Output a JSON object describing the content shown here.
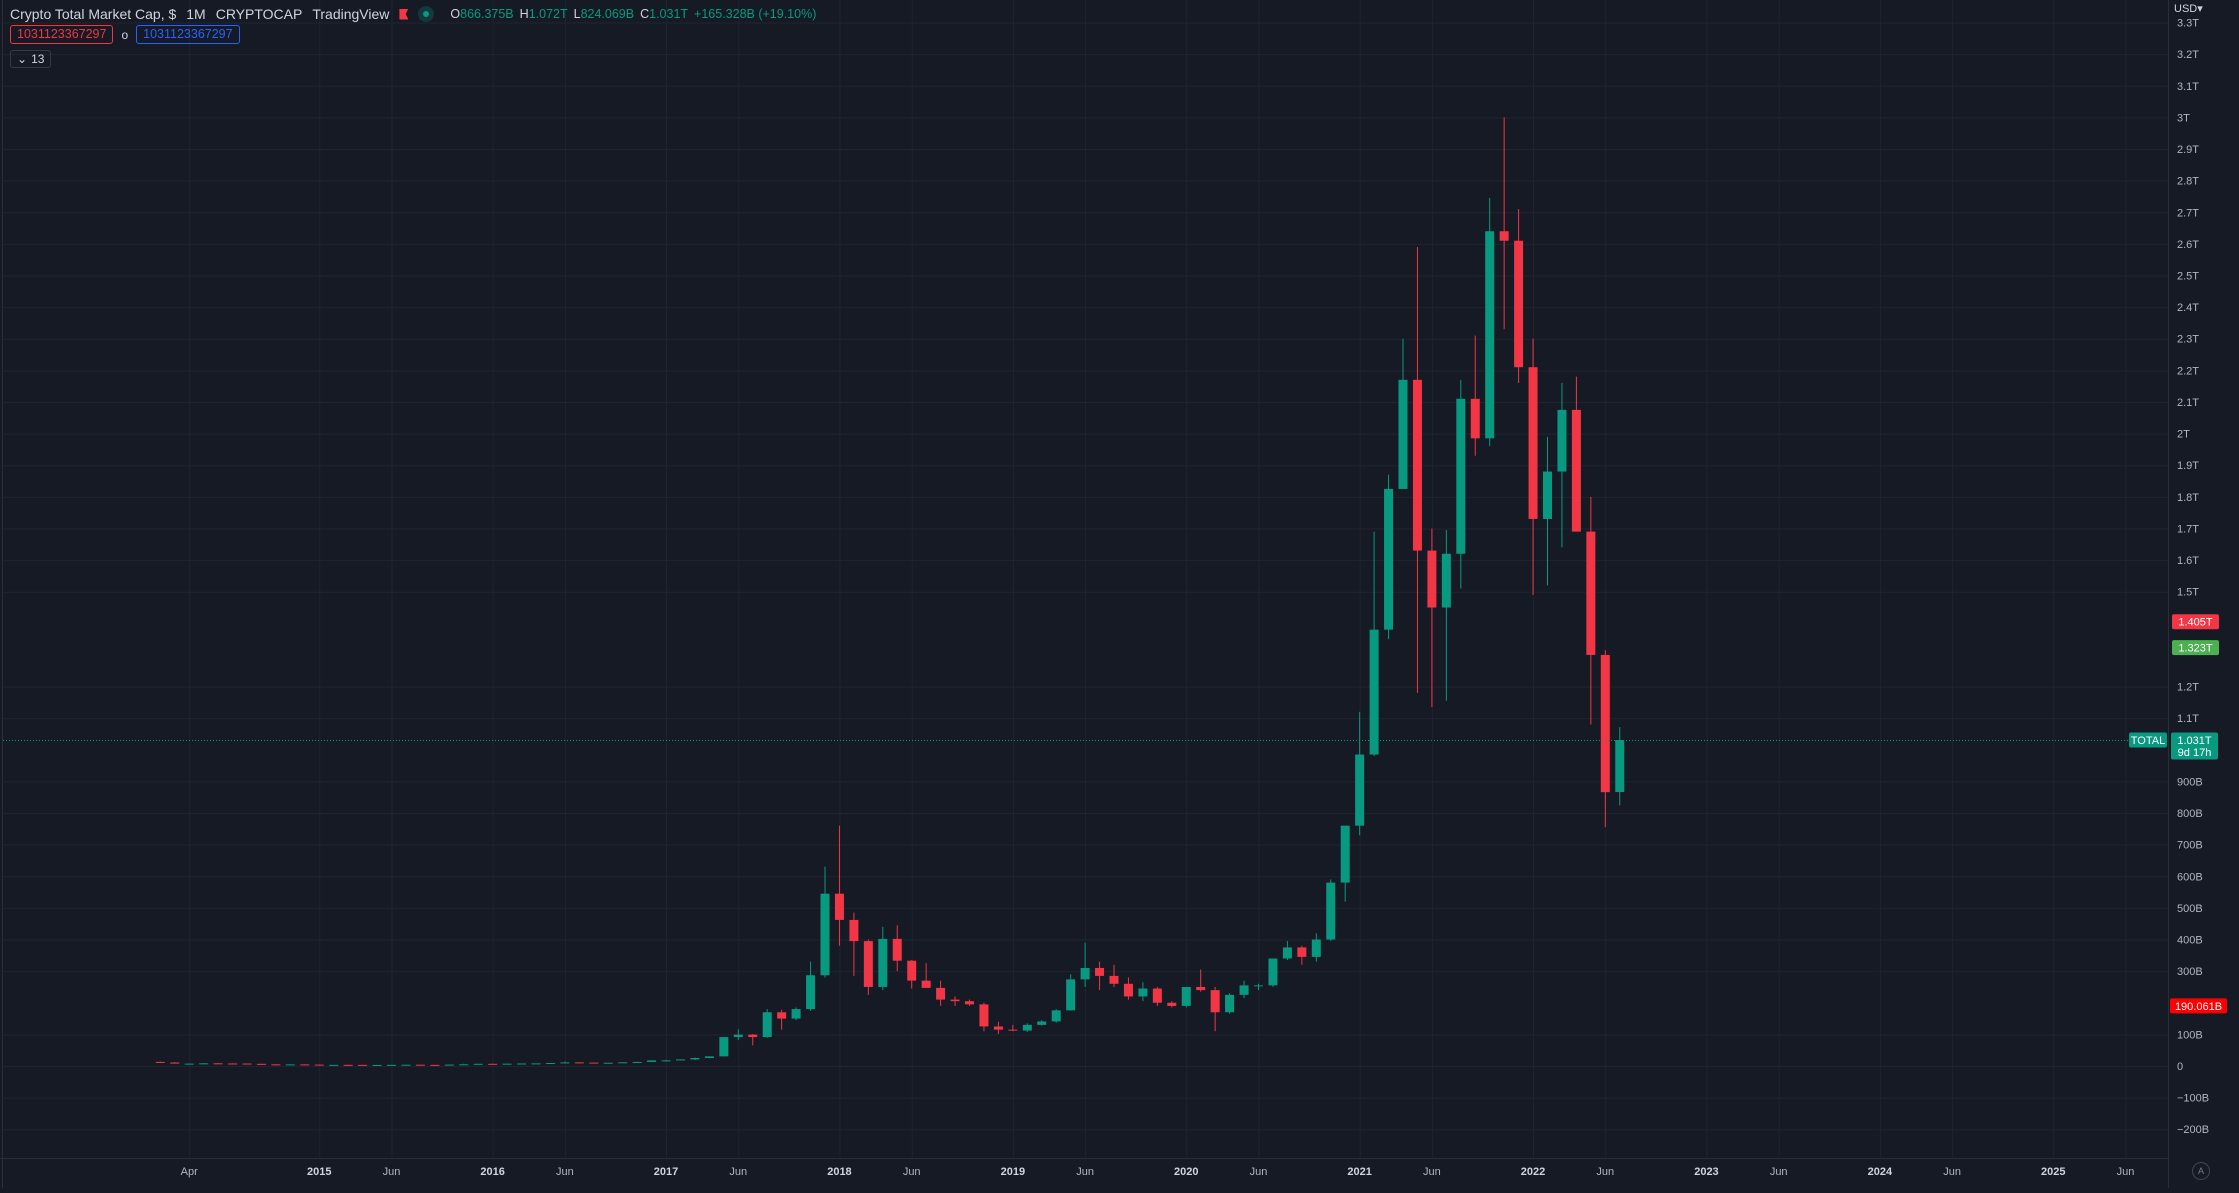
{
  "header": {
    "title": "Crypto Total Market Cap, $",
    "interval": "1M",
    "exchange": "CRYPTOCAP",
    "source": "TradingView",
    "ohlc": {
      "o_label": "O",
      "o_value": "866.375B",
      "h_label": "H",
      "h_value": "1.072T",
      "l_label": "L",
      "l_value": "824.069B",
      "c_label": "C",
      "c_value": "1.031T",
      "change": "+165.328B (+19.10%)"
    },
    "tag_red": "1031123367297",
    "tag_o": "o",
    "tag_blue": "1031123367297",
    "indicator_count": "13",
    "currency": "USD",
    "auto_label": "A"
  },
  "colors": {
    "background": "#161a25",
    "up": "#089981",
    "down": "#f23645",
    "grid": "#1f2430",
    "text": "#b2b5be",
    "label_red": "#f23645",
    "label_green": "#4caf50"
  },
  "price_labels": {
    "high_level": "1.405T",
    "mid_level": "1.323T",
    "symbol": "TOTAL",
    "last": "1.031T",
    "countdown": "9d 17h",
    "low_marker": "190.061B"
  },
  "chart_data": {
    "type": "candlestick",
    "title": "Crypto Total Market Cap, $",
    "interval": "1M",
    "y_unit": "USD",
    "ylim": [
      -250000000000,
      3350000000000
    ],
    "grid": true,
    "y_ticks": [
      {
        "v": 3300000000000,
        "label": "3.3T"
      },
      {
        "v": 3200000000000,
        "label": "3.2T"
      },
      {
        "v": 3100000000000,
        "label": "3.1T"
      },
      {
        "v": 3000000000000,
        "label": "3T"
      },
      {
        "v": 2900000000000,
        "label": "2.9T"
      },
      {
        "v": 2800000000000,
        "label": "2.8T"
      },
      {
        "v": 2700000000000,
        "label": "2.7T"
      },
      {
        "v": 2600000000000,
        "label": "2.6T"
      },
      {
        "v": 2500000000000,
        "label": "2.5T"
      },
      {
        "v": 2400000000000,
        "label": "2.4T"
      },
      {
        "v": 2300000000000,
        "label": "2.3T"
      },
      {
        "v": 2200000000000,
        "label": "2.2T"
      },
      {
        "v": 2100000000000,
        "label": "2.1T"
      },
      {
        "v": 2000000000000,
        "label": "2T"
      },
      {
        "v": 1900000000000,
        "label": "1.9T"
      },
      {
        "v": 1800000000000,
        "label": "1.8T"
      },
      {
        "v": 1700000000000,
        "label": "1.7T"
      },
      {
        "v": 1600000000000,
        "label": "1.6T"
      },
      {
        "v": 1500000000000,
        "label": "1.5T"
      },
      {
        "v": 1200000000000,
        "label": "1.2T"
      },
      {
        "v": 1100000000000,
        "label": "1.1T"
      },
      {
        "v": 900000000000,
        "label": "900B"
      },
      {
        "v": 800000000000,
        "label": "800B"
      },
      {
        "v": 700000000000,
        "label": "700B"
      },
      {
        "v": 600000000000,
        "label": "600B"
      },
      {
        "v": 500000000000,
        "label": "500B"
      },
      {
        "v": 400000000000,
        "label": "400B"
      },
      {
        "v": 300000000000,
        "label": "300B"
      },
      {
        "v": 100000000000,
        "label": "100B"
      },
      {
        "v": 0,
        "label": "0"
      },
      {
        "v": -100000000000,
        "label": "−100B"
      },
      {
        "v": -200000000000,
        "label": "−200B"
      }
    ],
    "x_ticks": [
      {
        "date": "2014-04",
        "label": "Apr",
        "bold": false
      },
      {
        "date": "2015-01",
        "label": "2015",
        "bold": true
      },
      {
        "date": "2015-06",
        "label": "Jun",
        "bold": false
      },
      {
        "date": "2016-01",
        "label": "2016",
        "bold": true
      },
      {
        "date": "2016-06",
        "label": "Jun",
        "bold": false
      },
      {
        "date": "2017-01",
        "label": "2017",
        "bold": true
      },
      {
        "date": "2017-06",
        "label": "Jun",
        "bold": false
      },
      {
        "date": "2018-01",
        "label": "2018",
        "bold": true
      },
      {
        "date": "2018-06",
        "label": "Jun",
        "bold": false
      },
      {
        "date": "2019-01",
        "label": "2019",
        "bold": true
      },
      {
        "date": "2019-06",
        "label": "Jun",
        "bold": false
      },
      {
        "date": "2020-01",
        "label": "2020",
        "bold": true
      },
      {
        "date": "2020-06",
        "label": "Jun",
        "bold": false
      },
      {
        "date": "2021-01",
        "label": "2021",
        "bold": true
      },
      {
        "date": "2021-06",
        "label": "Jun",
        "bold": false
      },
      {
        "date": "2022-01",
        "label": "2022",
        "bold": true
      },
      {
        "date": "2022-06",
        "label": "Jun",
        "bold": false
      },
      {
        "date": "2023-01",
        "label": "2023",
        "bold": true
      },
      {
        "date": "2023-06",
        "label": "Jun",
        "bold": false
      },
      {
        "date": "2024-01",
        "label": "2024",
        "bold": true
      },
      {
        "date": "2024-06",
        "label": "Jun",
        "bold": false
      },
      {
        "date": "2025-01",
        "label": "2025",
        "bold": true
      },
      {
        "date": "2025-06",
        "label": "Jun",
        "bold": false
      }
    ],
    "candles": [
      {
        "date": "2014-02",
        "o": 13,
        "h": 14,
        "l": 10,
        "c": 11
      },
      {
        "date": "2014-03",
        "o": 11,
        "h": 12,
        "l": 8,
        "c": 7.5
      },
      {
        "date": "2014-04",
        "o": 7.5,
        "h": 8,
        "l": 6.5,
        "c": 7.5
      },
      {
        "date": "2014-05",
        "o": 7.5,
        "h": 9,
        "l": 7,
        "c": 8.5
      },
      {
        "date": "2014-06",
        "o": 8.5,
        "h": 9,
        "l": 7.5,
        "c": 8
      },
      {
        "date": "2014-07",
        "o": 8,
        "h": 8.5,
        "l": 7.5,
        "c": 7.8
      },
      {
        "date": "2014-08",
        "o": 7.8,
        "h": 8,
        "l": 6.5,
        "c": 6.8
      },
      {
        "date": "2014-09",
        "o": 6.8,
        "h": 7,
        "l": 5,
        "c": 5.2
      },
      {
        "date": "2014-10",
        "o": 5.2,
        "h": 5.5,
        "l": 4.5,
        "c": 4.7
      },
      {
        "date": "2014-11",
        "o": 4.7,
        "h": 5.5,
        "l": 4.6,
        "c": 5.1
      },
      {
        "date": "2014-12",
        "o": 5.1,
        "h": 5.3,
        "l": 4.3,
        "c": 4.4
      },
      {
        "date": "2015-01",
        "o": 4.4,
        "h": 4.5,
        "l": 2.4,
        "c": 3.2
      },
      {
        "date": "2015-02",
        "o": 3.2,
        "h": 3.7,
        "l": 3.0,
        "c": 3.6
      },
      {
        "date": "2015-03",
        "o": 3.6,
        "h": 4.2,
        "l": 3.4,
        "c": 3.5
      },
      {
        "date": "2015-04",
        "o": 3.5,
        "h": 3.6,
        "l": 3.1,
        "c": 3.2
      },
      {
        "date": "2015-05",
        "o": 3.2,
        "h": 3.5,
        "l": 3.1,
        "c": 3.3
      },
      {
        "date": "2015-06",
        "o": 3.3,
        "h": 3.7,
        "l": 3.2,
        "c": 3.6
      },
      {
        "date": "2015-07",
        "o": 3.6,
        "h": 4.4,
        "l": 3.6,
        "c": 4.1
      },
      {
        "date": "2015-08",
        "o": 4.1,
        "h": 4.3,
        "l": 3.4,
        "c": 3.5
      },
      {
        "date": "2015-09",
        "o": 3.5,
        "h": 3.6,
        "l": 3.3,
        "c": 3.4
      },
      {
        "date": "2015-10",
        "o": 3.4,
        "h": 4.8,
        "l": 3.4,
        "c": 4.4
      },
      {
        "date": "2015-11",
        "o": 4.4,
        "h": 7.2,
        "l": 4.2,
        "c": 5.4
      },
      {
        "date": "2015-12",
        "o": 5.4,
        "h": 7.0,
        "l": 5.2,
        "c": 6.9
      },
      {
        "date": "2016-01",
        "o": 6.9,
        "h": 7.6,
        "l": 6.0,
        "c": 6.3
      },
      {
        "date": "2016-02",
        "o": 6.3,
        "h": 7.4,
        "l": 6.1,
        "c": 7.3
      },
      {
        "date": "2016-03",
        "o": 7.3,
        "h": 8.0,
        "l": 6.8,
        "c": 7.9
      },
      {
        "date": "2016-04",
        "o": 7.9,
        "h": 8.3,
        "l": 7.4,
        "c": 8.3
      },
      {
        "date": "2016-05",
        "o": 8.3,
        "h": 9.6,
        "l": 8.1,
        "c": 9.5
      },
      {
        "date": "2016-06",
        "o": 9.5,
        "h": 14.5,
        "l": 9.4,
        "c": 11.4
      },
      {
        "date": "2016-07",
        "o": 11.4,
        "h": 12.0,
        "l": 10.3,
        "c": 10.8
      },
      {
        "date": "2016-08",
        "o": 10.8,
        "h": 11.0,
        "l": 9.3,
        "c": 10.0
      },
      {
        "date": "2016-09",
        "o": 10.0,
        "h": 10.5,
        "l": 9.8,
        "c": 10.3
      },
      {
        "date": "2016-10",
        "o": 10.3,
        "h": 11.8,
        "l": 10.2,
        "c": 11.7
      },
      {
        "date": "2016-11",
        "o": 11.7,
        "h": 12.9,
        "l": 11.4,
        "c": 12.8
      },
      {
        "date": "2016-12",
        "o": 12.8,
        "h": 17.7,
        "l": 12.7,
        "c": 17.7
      },
      {
        "date": "2017-01",
        "o": 17.7,
        "h": 19.5,
        "l": 15.6,
        "c": 17.7
      },
      {
        "date": "2017-02",
        "o": 17.7,
        "h": 21.0,
        "l": 17.3,
        "c": 20.8
      },
      {
        "date": "2017-03",
        "o": 20.8,
        "h": 27.0,
        "l": 18.7,
        "c": 25.3
      },
      {
        "date": "2017-04",
        "o": 25.3,
        "h": 30.5,
        "l": 25.0,
        "c": 30.4
      },
      {
        "date": "2017-05",
        "o": 30.4,
        "h": 91.0,
        "l": 30.0,
        "c": 91.5
      },
      {
        "date": "2017-06",
        "o": 91.5,
        "h": 116,
        "l": 82,
        "c": 99.3
      },
      {
        "date": "2017-07",
        "o": 99.3,
        "h": 101,
        "l": 65,
        "c": 91.6
      },
      {
        "date": "2017-08",
        "o": 91.6,
        "h": 180,
        "l": 89,
        "c": 170
      },
      {
        "date": "2017-09",
        "o": 170,
        "h": 178,
        "l": 115,
        "c": 150
      },
      {
        "date": "2017-10",
        "o": 150,
        "h": 185,
        "l": 145,
        "c": 180
      },
      {
        "date": "2017-11",
        "o": 180,
        "h": 330,
        "l": 175,
        "c": 287
      },
      {
        "date": "2017-12",
        "o": 287,
        "h": 630,
        "l": 280,
        "c": 545
      },
      {
        "date": "2018-01",
        "o": 545,
        "h": 760,
        "l": 380,
        "c": 462
      },
      {
        "date": "2018-02",
        "o": 462,
        "h": 485,
        "l": 285,
        "c": 395
      },
      {
        "date": "2018-03",
        "o": 395,
        "h": 400,
        "l": 225,
        "c": 250
      },
      {
        "date": "2018-04",
        "o": 250,
        "h": 440,
        "l": 240,
        "c": 402
      },
      {
        "date": "2018-05",
        "o": 402,
        "h": 445,
        "l": 300,
        "c": 333
      },
      {
        "date": "2018-06",
        "o": 333,
        "h": 335,
        "l": 245,
        "c": 270
      },
      {
        "date": "2018-07",
        "o": 270,
        "h": 325,
        "l": 255,
        "c": 247
      },
      {
        "date": "2018-08",
        "o": 247,
        "h": 270,
        "l": 190,
        "c": 210
      },
      {
        "date": "2018-09",
        "o": 210,
        "h": 220,
        "l": 190,
        "c": 205
      },
      {
        "date": "2018-10",
        "o": 205,
        "h": 210,
        "l": 190,
        "c": 195
      },
      {
        "date": "2018-11",
        "o": 195,
        "h": 200,
        "l": 110,
        "c": 125
      },
      {
        "date": "2018-12",
        "o": 125,
        "h": 140,
        "l": 101,
        "c": 115
      },
      {
        "date": "2019-01",
        "o": 115,
        "h": 130,
        "l": 110,
        "c": 112
      },
      {
        "date": "2019-02",
        "o": 112,
        "h": 135,
        "l": 108,
        "c": 130
      },
      {
        "date": "2019-03",
        "o": 130,
        "h": 145,
        "l": 128,
        "c": 141
      },
      {
        "date": "2019-04",
        "o": 141,
        "h": 180,
        "l": 137,
        "c": 176
      },
      {
        "date": "2019-05",
        "o": 176,
        "h": 290,
        "l": 175,
        "c": 274
      },
      {
        "date": "2019-06",
        "o": 274,
        "h": 390,
        "l": 250,
        "c": 310
      },
      {
        "date": "2019-07",
        "o": 310,
        "h": 330,
        "l": 240,
        "c": 285
      },
      {
        "date": "2019-08",
        "o": 285,
        "h": 320,
        "l": 250,
        "c": 260
      },
      {
        "date": "2019-09",
        "o": 260,
        "h": 280,
        "l": 210,
        "c": 220
      },
      {
        "date": "2019-10",
        "o": 220,
        "h": 265,
        "l": 205,
        "c": 245
      },
      {
        "date": "2019-11",
        "o": 245,
        "h": 250,
        "l": 190,
        "c": 200
      },
      {
        "date": "2019-12",
        "o": 200,
        "h": 205,
        "l": 185,
        "c": 190
      },
      {
        "date": "2020-01",
        "o": 190,
        "h": 250,
        "l": 185,
        "c": 250
      },
      {
        "date": "2020-02",
        "o": 250,
        "h": 305,
        "l": 235,
        "c": 240
      },
      {
        "date": "2020-03",
        "o": 240,
        "h": 250,
        "l": 110,
        "c": 170
      },
      {
        "date": "2020-04",
        "o": 170,
        "h": 230,
        "l": 165,
        "c": 225
      },
      {
        "date": "2020-05",
        "o": 225,
        "h": 270,
        "l": 215,
        "c": 255
      },
      {
        "date": "2020-06",
        "o": 255,
        "h": 260,
        "l": 240,
        "c": 255
      },
      {
        "date": "2020-07",
        "o": 255,
        "h": 340,
        "l": 250,
        "c": 340
      },
      {
        "date": "2020-08",
        "o": 340,
        "h": 395,
        "l": 335,
        "c": 375
      },
      {
        "date": "2020-09",
        "o": 375,
        "h": 380,
        "l": 320,
        "c": 345
      },
      {
        "date": "2020-10",
        "o": 345,
        "h": 420,
        "l": 330,
        "c": 400
      },
      {
        "date": "2020-11",
        "o": 400,
        "h": 590,
        "l": 395,
        "c": 580
      },
      {
        "date": "2020-12",
        "o": 580,
        "h": 760,
        "l": 520,
        "c": 760
      },
      {
        "date": "2021-01",
        "o": 760,
        "h": 1120,
        "l": 730,
        "c": 985
      },
      {
        "date": "2021-02",
        "o": 985,
        "h": 1690,
        "l": 980,
        "c": 1380
      },
      {
        "date": "2021-03",
        "o": 1380,
        "h": 1870,
        "l": 1350,
        "c": 1825
      },
      {
        "date": "2021-04",
        "o": 1825,
        "h": 2300,
        "l": 1840,
        "c": 2170
      },
      {
        "date": "2021-05",
        "o": 2170,
        "h": 2590,
        "l": 1180,
        "c": 1630
      },
      {
        "date": "2021-06",
        "o": 1630,
        "h": 1700,
        "l": 1135,
        "c": 1450
      },
      {
        "date": "2021-07",
        "o": 1450,
        "h": 1695,
        "l": 1155,
        "c": 1620
      },
      {
        "date": "2021-08",
        "o": 1620,
        "h": 2170,
        "l": 1510,
        "c": 2110
      },
      {
        "date": "2021-09",
        "o": 2110,
        "h": 2310,
        "l": 1930,
        "c": 1985
      },
      {
        "date": "2021-10",
        "o": 1985,
        "h": 2745,
        "l": 1960,
        "c": 2640
      },
      {
        "date": "2021-11",
        "o": 2640,
        "h": 3000,
        "l": 2330,
        "c": 2610
      },
      {
        "date": "2021-12",
        "o": 2610,
        "h": 2710,
        "l": 2160,
        "c": 2210
      },
      {
        "date": "2022-01",
        "o": 2210,
        "h": 2300,
        "l": 1490,
        "c": 1730
      },
      {
        "date": "2022-02",
        "o": 1730,
        "h": 1990,
        "l": 1520,
        "c": 1880
      },
      {
        "date": "2022-03",
        "o": 1880,
        "h": 2160,
        "l": 1640,
        "c": 2075
      },
      {
        "date": "2022-04",
        "o": 2075,
        "h": 2180,
        "l": 1690,
        "c": 1690
      },
      {
        "date": "2022-05",
        "o": 1690,
        "h": 1800,
        "l": 1080,
        "c": 1300
      },
      {
        "date": "2022-06",
        "o": 1300,
        "h": 1315,
        "l": 755,
        "c": 866
      },
      {
        "date": "2022-07",
        "o": 866.375,
        "h": 1072,
        "l": 824.069,
        "c": 1031
      }
    ]
  }
}
